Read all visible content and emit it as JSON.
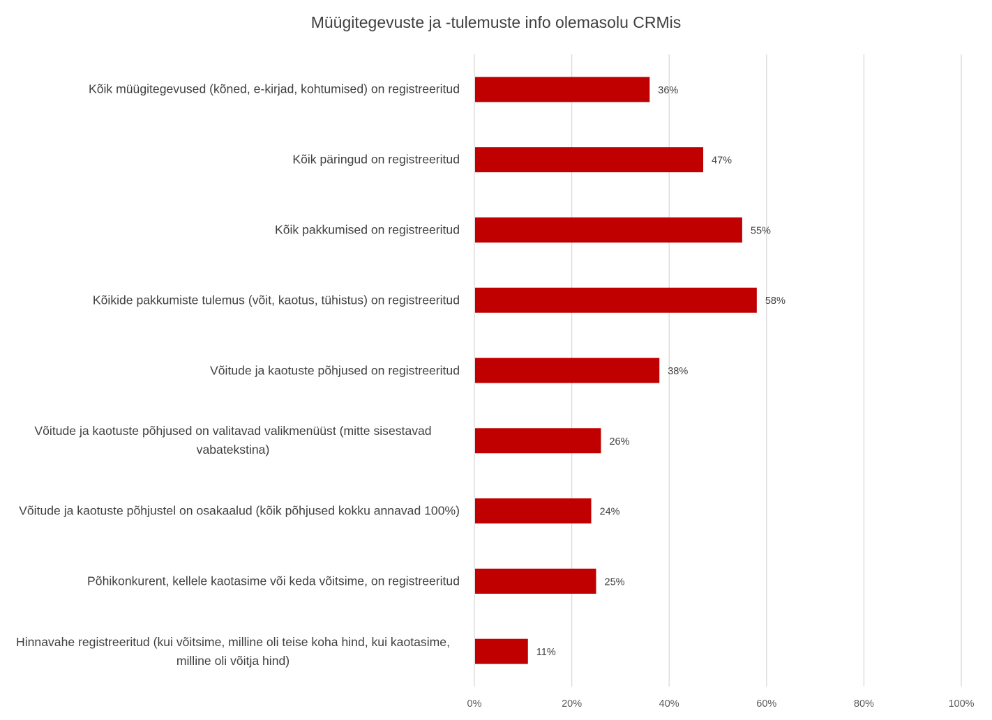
{
  "chart_data": {
    "type": "bar",
    "orientation": "horizontal",
    "title": "Müügitegevuste ja -tulemuste info olemasolu CRMis",
    "categories": [
      "Kõik müügitegevused (kõned, e-kirjad, kohtumised) on registreeritud",
      "Kõik päringud on registreeritud",
      "Kõik pakkumised on registreeritud",
      "Kõikide pakkumiste tulemus (võit, kaotus, tühistus) on registreeritud",
      "Võitude ja kaotuste põhjused on registreeritud",
      "Võitude ja kaotuste põhjused on valitavad valikmenüüst (mitte sisestavad vabatekstina)",
      "Võitude ja kaotuste põhjustel on osakaalud (kõik põhjused kokku annavad 100%)",
      "Põhikonkurent, kellele kaotasime või keda võitsime, on registreeritud",
      "Hinnavahe registreeritud (kui võitsime, milline oli teise koha hind, kui kaotasime, milline oli võitja hind)"
    ],
    "values": [
      36,
      47,
      55,
      58,
      38,
      26,
      24,
      25,
      11
    ],
    "data_labels": [
      "36%",
      "47%",
      "55%",
      "58%",
      "38%",
      "26%",
      "24%",
      "25%",
      "11%"
    ],
    "xlim": [
      0,
      100
    ],
    "x_ticks": [
      "0%",
      "20%",
      "40%",
      "60%",
      "80%",
      "100%"
    ],
    "grid": "vertical",
    "legend": "none",
    "bar_color": "#C00000",
    "grid_color": "#D9D9D9"
  }
}
